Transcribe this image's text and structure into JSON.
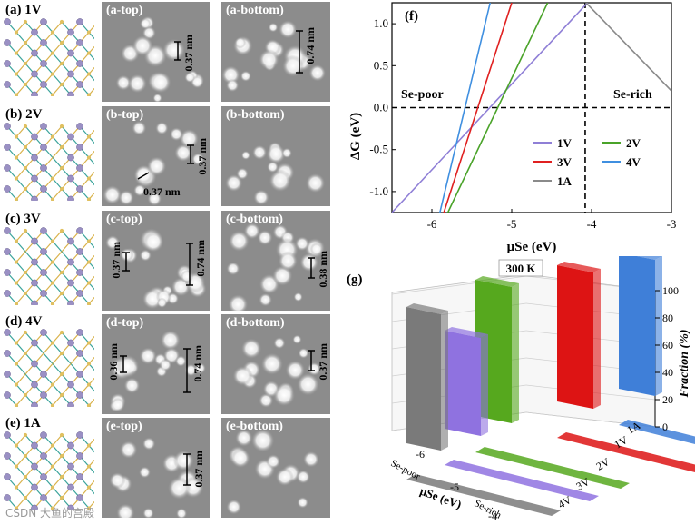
{
  "rows": [
    {
      "label": "(a) 1V",
      "top_label": "(a-top)",
      "bottom_label": "(a-bottom)",
      "top_scale": [
        "0.37 nm"
      ],
      "bottom_scale": [
        "0.74 nm"
      ]
    },
    {
      "label": "(b) 2V",
      "top_label": "(b-top)",
      "bottom_label": "(b-bottom)",
      "top_scale": [
        "0.37 nm",
        "0.37 nm"
      ],
      "bottom_scale": []
    },
    {
      "label": "(c) 3V",
      "top_label": "(c-top)",
      "bottom_label": "(c-bottom)",
      "top_scale": [
        "0.37 nm",
        "0.74 nm"
      ],
      "bottom_scale": [
        "0.38 nm"
      ]
    },
    {
      "label": "(d) 4V",
      "top_label": "(d-top)",
      "bottom_label": "(d-bottom)",
      "top_scale": [
        "0.36 nm",
        "0.74 nm"
      ],
      "bottom_scale": [
        "0.37 nm"
      ]
    },
    {
      "label": "(e) 1A",
      "top_label": "(e-top)",
      "bottom_label": "(e-bottom)",
      "top_scale": [
        "0.37 nm"
      ],
      "bottom_scale": []
    }
  ],
  "chart_data": [
    {
      "type": "line",
      "panel": "(f)",
      "xlabel": "μSe (eV)",
      "ylabel": "ΔG (eV)",
      "xlim": [
        -6.5,
        -3
      ],
      "ylim": [
        -1.25,
        1.25
      ],
      "xticks": [
        "-6",
        "-5",
        "-4",
        "-3"
      ],
      "yticks": [
        "-1.0",
        "-0.5",
        "0.0",
        "0.5",
        "1.0"
      ],
      "annotations": [
        "Se-poor",
        "Se-rich"
      ],
      "vline_x": -4.08,
      "hline_y": 0.0,
      "series": [
        {
          "name": "1V",
          "color": "#8f7fd6",
          "x": [
            -6.5,
            -4.05
          ],
          "y": [
            -1.25,
            1.25
          ]
        },
        {
          "name": "2V",
          "color": "#4aa329",
          "x": [
            -5.8,
            -4.55
          ],
          "y": [
            -1.25,
            1.25
          ]
        },
        {
          "name": "3V",
          "color": "#e02020",
          "x": [
            -5.85,
            -5.0
          ],
          "y": [
            -1.25,
            1.25
          ]
        },
        {
          "name": "4V",
          "color": "#3f8fe0",
          "x": [
            -5.9,
            -5.27
          ],
          "y": [
            -1.25,
            1.25
          ]
        },
        {
          "name": "1A",
          "color": "#8a8a8a",
          "x": [
            -4.1,
            -3.0
          ],
          "y": [
            1.28,
            0.2
          ]
        }
      ]
    },
    {
      "type": "area",
      "panel": "(g)",
      "title": "300 K",
      "xlabel": "μSe (eV)",
      "ylabel": "Fraction (%)",
      "xticks": [
        "-6",
        "-5",
        "-4"
      ],
      "yticks": [
        "0",
        "20",
        "40",
        "60",
        "80",
        "100"
      ],
      "x_annotations": [
        "Se-poor",
        "Se-rich"
      ],
      "series_labels": [
        "1A",
        "1V",
        "2V",
        "3V",
        "4V"
      ],
      "series": [
        {
          "name": "4V",
          "color": "#3f7fd8",
          "description": "100 at Se-poor, drops to 0 near -5.9"
        },
        {
          "name": "3V",
          "color": "#dd1414",
          "description": "peak ~80 near -5.7"
        },
        {
          "name": "2V",
          "color": "#56a81e",
          "description": "100 between -5.5 and -4.8"
        },
        {
          "name": "1V",
          "color": "#8f72e0",
          "description": "100 between -4.7 and -4.1"
        },
        {
          "name": "1A",
          "color": "#7a7a7a",
          "description": "100 at Se-rich"
        }
      ]
    }
  ],
  "watermark": "CSDN 大鱼的宫殿"
}
